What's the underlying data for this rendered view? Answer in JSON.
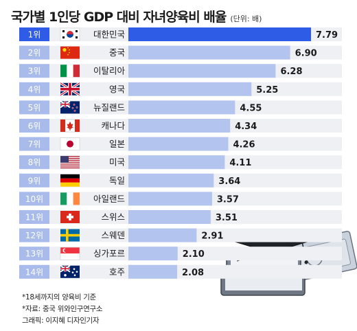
{
  "chart_data": {
    "type": "bar",
    "orientation": "horizontal",
    "title": "국가별 1인당 GDP 대비 자녀양육비 배율",
    "unit": "(단위: 배)",
    "rank_labels": [
      "1위",
      "2위",
      "3위",
      "4위",
      "5위",
      "6위",
      "7위",
      "8위",
      "9위",
      "10위",
      "11위",
      "12위",
      "13위",
      "14위"
    ],
    "categories": [
      "대한민국",
      "중국",
      "이탈리아",
      "영국",
      "뉴질랜드",
      "캐나다",
      "일본",
      "미국",
      "독일",
      "아일랜드",
      "스위스",
      "스웨덴",
      "싱가포르",
      "호주"
    ],
    "values": [
      7.79,
      6.9,
      6.28,
      5.25,
      4.55,
      4.34,
      4.26,
      4.11,
      3.64,
      3.57,
      3.51,
      2.91,
      2.1,
      2.08
    ],
    "value_labels": [
      "7.79",
      "6.90",
      "6.28",
      "5.25",
      "4.55",
      "4.34",
      "4.26",
      "4.11",
      "3.64",
      "3.57",
      "3.51",
      "2.91",
      "2.10",
      "2.08"
    ],
    "flags": [
      "kr-flag-icon",
      "cn-flag-icon",
      "it-flag-icon",
      "gb-flag-icon",
      "nz-flag-icon",
      "ca-flag-icon",
      "jp-flag-icon",
      "us-flag-icon",
      "de-flag-icon",
      "ie-flag-icon",
      "ch-flag-icon",
      "se-flag-icon",
      "sg-flag-icon",
      "au-flag-icon"
    ],
    "highlight_index": 0,
    "colors": {
      "highlight": "#2e5ce6",
      "bar": "#b3c4ee",
      "rank_highlight": "#2e5ce6",
      "rank": "#a9bbea",
      "row_bg": "#eef0f3"
    }
  },
  "notes": [
    "*18세까지의 양육비 기준",
    "*자료: 중국 위와인구연구소",
    "그래픽: 이지혜 디자인기자"
  ]
}
